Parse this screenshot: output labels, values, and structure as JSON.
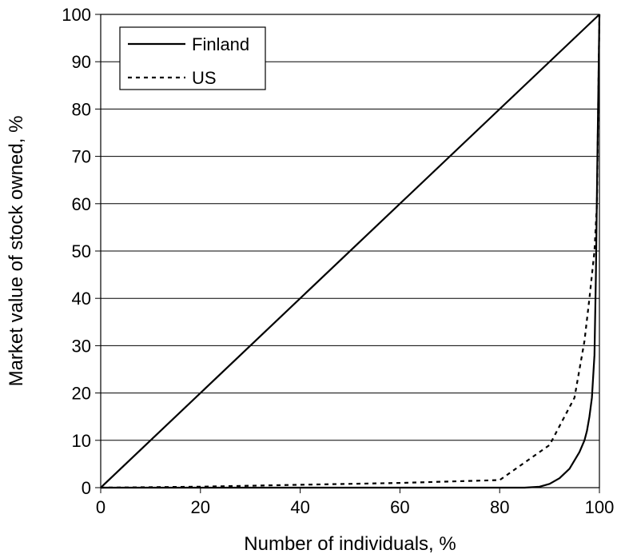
{
  "chart_data": {
    "type": "line",
    "title": "",
    "xlabel": "Number of individuals, %",
    "ylabel": "Market value of stock owned, %",
    "xlim": [
      0,
      100
    ],
    "ylim": [
      0,
      100
    ],
    "x_ticks": [
      "0",
      "20",
      "40",
      "60",
      "80",
      "100"
    ],
    "y_ticks": [
      "0",
      "10",
      "20",
      "30",
      "40",
      "50",
      "60",
      "70",
      "80",
      "90",
      "100"
    ],
    "grid": "horizontal",
    "legend_position": "top-left",
    "series": [
      {
        "name": "Finland",
        "style": "solid",
        "color": "#000000",
        "x": [
          0,
          85,
          88,
          90,
          92,
          94,
          96,
          97,
          97.5,
          98,
          98.5,
          99,
          99.3,
          99.6,
          100
        ],
        "y": [
          0,
          0,
          0.2,
          0.8,
          2,
          4,
          7.5,
          10,
          12,
          15,
          19,
          28,
          45,
          70,
          100
        ]
      },
      {
        "name": "US",
        "style": "dotted",
        "color": "#000000",
        "x": [
          0,
          20,
          40,
          60,
          80,
          90,
          95,
          97,
          98,
          99,
          99.5,
          100
        ],
        "y": [
          0,
          0.2,
          0.6,
          1,
          1.6,
          9,
          19,
          31,
          40,
          50,
          60,
          100
        ]
      },
      {
        "name": "",
        "style": "solid",
        "color": "#000000",
        "x": [
          0,
          100
        ],
        "y": [
          0,
          100
        ]
      }
    ]
  }
}
